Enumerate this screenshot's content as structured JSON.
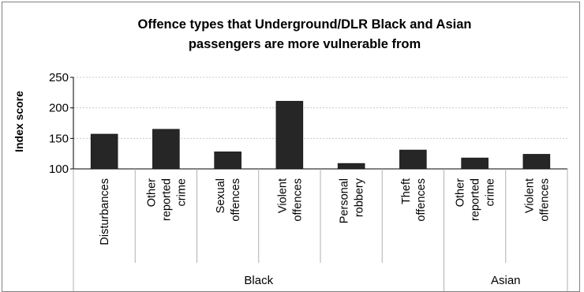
{
  "chart_data": {
    "type": "bar",
    "title_lines": [
      "Offence types that Underground/DLR Black and Asian",
      "passengers are more vulnerable from"
    ],
    "ylabel": "Index score",
    "xlabel": "",
    "ylim": [
      100,
      250
    ],
    "yticks": [
      100,
      150,
      200,
      250
    ],
    "grid": true,
    "bar_color": "#262626",
    "categories": [
      {
        "lines": [
          "Disturbances"
        ],
        "group": "Black"
      },
      {
        "lines": [
          "Other",
          "reported",
          "crime"
        ],
        "group": "Black"
      },
      {
        "lines": [
          "Sexual",
          "offences"
        ],
        "group": "Black"
      },
      {
        "lines": [
          "Violent",
          "offences"
        ],
        "group": "Black"
      },
      {
        "lines": [
          "Personal",
          "robbery"
        ],
        "group": "Black"
      },
      {
        "lines": [
          "Theft",
          "offences"
        ],
        "group": "Black"
      },
      {
        "lines": [
          "Other",
          "reported",
          "crime"
        ],
        "group": "Asian"
      },
      {
        "lines": [
          "Violent",
          "offences"
        ],
        "group": "Asian"
      }
    ],
    "values": [
      157,
      165,
      128,
      211,
      109,
      131,
      118,
      124
    ],
    "groups": [
      {
        "label": "Black",
        "count": 6
      },
      {
        "label": "Asian",
        "count": 2
      }
    ]
  }
}
